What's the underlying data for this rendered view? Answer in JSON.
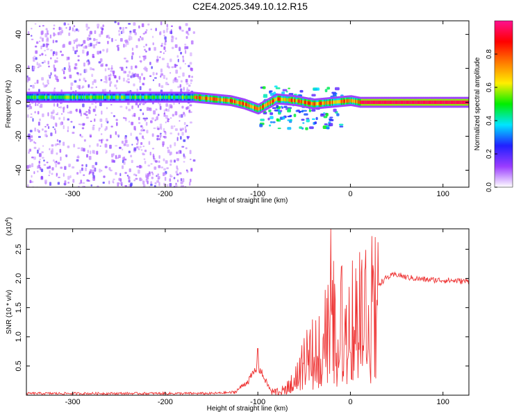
{
  "title": "C2E4.2025.349.10.12.R15",
  "chart_data": [
    {
      "type": "heatmap",
      "title": "C2E4.2025.349.10.12.R15",
      "xlabel": "Height of straight line (km)",
      "ylabel": "Frequency (Hz)",
      "xlim": [
        -350,
        128
      ],
      "ylim": [
        -50,
        48
      ],
      "xticks": [
        -300,
        -200,
        -100,
        0,
        100
      ],
      "xtick_labels": [
        "-300",
        "-200",
        "-100",
        "0",
        "100"
      ],
      "yticks": [
        -40,
        -20,
        0,
        20,
        40
      ],
      "ytick_labels": [
        "-40",
        "-20",
        "0",
        "20",
        "40"
      ],
      "colorbar": {
        "label": "Normalized spectral amplitude",
        "range": [
          0,
          1
        ],
        "ticks": [
          0.0,
          0.2,
          0.4,
          0.6,
          0.8
        ],
        "tick_labels": [
          "0.0",
          "0.2",
          "0.4",
          "0.6",
          "0.8"
        ],
        "colors": [
          "#ffffff",
          "#9a3cff",
          "#2020ff",
          "#00e5ff",
          "#00ee00",
          "#ffee00",
          "#ff7a00",
          "#ff0000",
          "#ff1090"
        ]
      },
      "noise_x_range": [
        -350,
        -170
      ],
      "carrier_path": [
        {
          "x": -350,
          "y": 3
        },
        {
          "x": -170,
          "y": 3
        },
        {
          "x": -150,
          "y": 2
        },
        {
          "x": -130,
          "y": 1
        },
        {
          "x": -115,
          "y": -1
        },
        {
          "x": -100,
          "y": -4
        },
        {
          "x": -80,
          "y": 2
        },
        {
          "x": -60,
          "y": 1
        },
        {
          "x": -40,
          "y": -1
        },
        {
          "x": -20,
          "y": 0
        },
        {
          "x": 0,
          "y": 1
        },
        {
          "x": 10,
          "y": 0
        },
        {
          "x": 128,
          "y": 0
        }
      ]
    },
    {
      "type": "line",
      "xlabel": "Height of straight line (km)",
      "ylabel": "SNR (10 * v/v)",
      "yscale_label": "(x10",
      "yscale_exp": "4",
      "yscale_close": ")",
      "xlim": [
        -350,
        128
      ],
      "ylim": [
        0,
        2.85
      ],
      "xticks": [
        -300,
        -200,
        -100,
        0,
        100
      ],
      "xtick_labels": [
        "-300",
        "-200",
        "-100",
        "0",
        "100"
      ],
      "yticks": [
        0.5,
        1.0,
        1.5,
        2.0,
        2.5
      ],
      "ytick_labels": [
        "0.5",
        "1.0",
        "1.5",
        "2.0",
        "2.5"
      ],
      "color": "#ee3333",
      "envelope": [
        {
          "x": -350,
          "y": 0.03
        },
        {
          "x": -150,
          "y": 0.03
        },
        {
          "x": -125,
          "y": 0.05
        },
        {
          "x": -110,
          "y": 0.25
        },
        {
          "x": -100,
          "y": 0.5
        },
        {
          "x": -95,
          "y": 0.35
        },
        {
          "x": -85,
          "y": 0.05
        },
        {
          "x": -70,
          "y": 0.08
        },
        {
          "x": -60,
          "y": 0.3
        },
        {
          "x": -50,
          "y": 0.6
        },
        {
          "x": -40,
          "y": 0.9
        },
        {
          "x": -30,
          "y": 1.2
        },
        {
          "x": -20,
          "y": 1.3
        },
        {
          "x": -10,
          "y": 1.45
        },
        {
          "x": 0,
          "y": 1.55
        },
        {
          "x": 10,
          "y": 1.65
        },
        {
          "x": 20,
          "y": 1.75
        },
        {
          "x": 30,
          "y": 1.9
        },
        {
          "x": 40,
          "y": 2.02
        },
        {
          "x": 50,
          "y": 2.07
        },
        {
          "x": 60,
          "y": 2.02
        },
        {
          "x": 80,
          "y": 1.98
        },
        {
          "x": 100,
          "y": 1.97
        },
        {
          "x": 128,
          "y": 1.95
        }
      ],
      "spikes": [
        {
          "x": -100,
          "y": 0.8
        },
        {
          "x": -21,
          "y": 2.85
        },
        {
          "x": -18,
          "y": 2.3
        },
        {
          "x": 10,
          "y": 2.45
        },
        {
          "x": 12,
          "y": 2.1
        }
      ]
    }
  ]
}
